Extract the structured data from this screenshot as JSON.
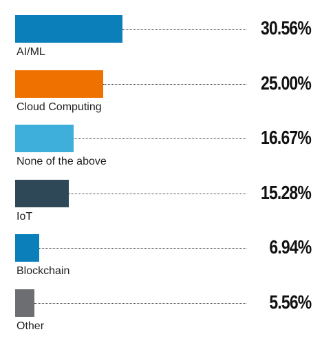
{
  "chart_data": {
    "type": "bar",
    "orientation": "horizontal",
    "title": "",
    "xlabel": "",
    "ylabel": "",
    "xlim": [
      0,
      30.56
    ],
    "grid": false,
    "legend": "none",
    "categories": [
      "AI/ML",
      "Cloud Computing",
      "None of the above",
      "IoT",
      "Blockchain",
      "Other"
    ],
    "values": [
      30.56,
      25.0,
      16.67,
      15.28,
      6.94,
      5.56
    ],
    "value_labels": [
      "30.56%",
      "25.00%",
      "16.67%",
      "15.28%",
      "6.94%",
      "5.56%"
    ],
    "colors": [
      "#0a7fba",
      "#ef7100",
      "#3eaedb",
      "#2f4858",
      "#0a7fba",
      "#6d6e71"
    ]
  }
}
